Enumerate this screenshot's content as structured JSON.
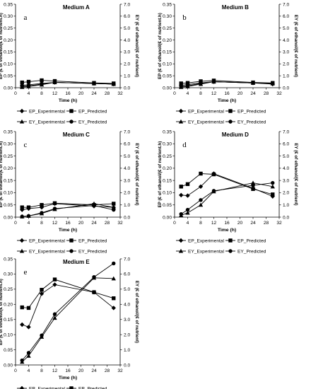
{
  "figure": {
    "legend_labels": [
      "EP_Experimental",
      "EP_Predicted",
      "EY_Experimental",
      "EY_Predicted"
    ]
  },
  "chart_data": [
    {
      "type": "line",
      "panel_letter": "a",
      "title": "Medium A",
      "xlabel": "Time (h)",
      "ylabel_left": "EP (€ of ethanol/(€ of nutrient.h)",
      "ylabel_right": "EY (€ of ethanol/(€ of nutrient)",
      "xlim": [
        0,
        32
      ],
      "x_ticks": [
        0,
        4,
        8,
        12,
        16,
        20,
        24,
        28,
        32
      ],
      "ylim_left": [
        0,
        0.35
      ],
      "y_ticks_left": [
        "0.00",
        "0.05",
        "0.10",
        "0.15",
        "0.20",
        "0.25",
        "0.30",
        "0.35"
      ],
      "ylim_right": [
        0,
        7.0
      ],
      "y_ticks_right": [
        "0.0",
        "1.0",
        "2.0",
        "3.0",
        "4.0",
        "5.0",
        "6.0",
        "7.0"
      ],
      "legend": "bottom",
      "series": [
        {
          "name": "EP_Experimental",
          "axis": "left",
          "marker": "diamond",
          "x": [
            2,
            4,
            8,
            12,
            24,
            30
          ],
          "y": [
            0.01,
            0.012,
            0.018,
            0.022,
            0.018,
            0.015
          ]
        },
        {
          "name": "EP_Predicted",
          "axis": "left",
          "marker": "square",
          "x": [
            2,
            4,
            8,
            12,
            24,
            30
          ],
          "y": [
            0.022,
            0.025,
            0.031,
            0.028,
            0.02,
            0.018
          ]
        },
        {
          "name": "EY_Experimental",
          "axis": "right",
          "marker": "triangle",
          "x": [
            2,
            4,
            8,
            12,
            24,
            30
          ],
          "y": [
            0.05,
            0.1,
            0.25,
            0.45,
            0.35,
            0.3
          ]
        },
        {
          "name": "EY_Predicted",
          "axis": "right",
          "marker": "circle",
          "x": [
            2,
            4,
            8,
            12,
            24,
            30
          ],
          "y": [
            0.1,
            0.15,
            0.3,
            0.45,
            0.35,
            0.3
          ]
        }
      ]
    },
    {
      "type": "line",
      "panel_letter": "b",
      "title": "Medium B",
      "xlabel": "Time (h)",
      "ylabel_left": "EP (€ of ethanol/(€ of nutrient.h)",
      "ylabel_right": "EY (€ of ethanol/(€ of nutrient)",
      "xlim": [
        0,
        32
      ],
      "x_ticks": [
        0,
        4,
        8,
        12,
        16,
        20,
        24,
        28,
        32
      ],
      "ylim_left": [
        0,
        0.35
      ],
      "y_ticks_left": [
        "0.00",
        "0.05",
        "0.10",
        "0.15",
        "0.20",
        "0.25",
        "0.30",
        "0.35"
      ],
      "ylim_right": [
        0,
        7.0
      ],
      "y_ticks_right": [
        "0.0",
        "1.0",
        "2.0",
        "3.0",
        "4.0",
        "5.0",
        "6.0",
        "7.0"
      ],
      "legend": "bottom",
      "series": [
        {
          "name": "EP_Experimental",
          "axis": "left",
          "marker": "diamond",
          "x": [
            2,
            4,
            8,
            12,
            24,
            30
          ],
          "y": [
            0.01,
            0.013,
            0.02,
            0.025,
            0.02,
            0.015
          ]
        },
        {
          "name": "EP_Predicted",
          "axis": "left",
          "marker": "square",
          "x": [
            2,
            4,
            8,
            12,
            24,
            30
          ],
          "y": [
            0.018,
            0.02,
            0.027,
            0.03,
            0.022,
            0.02
          ]
        },
        {
          "name": "EY_Experimental",
          "axis": "right",
          "marker": "triangle",
          "x": [
            2,
            4,
            8,
            12,
            24,
            30
          ],
          "y": [
            0.05,
            0.1,
            0.3,
            0.5,
            0.4,
            0.35
          ]
        },
        {
          "name": "EY_Predicted",
          "axis": "right",
          "marker": "circle",
          "x": [
            2,
            4,
            8,
            12,
            24,
            30
          ],
          "y": [
            0.1,
            0.15,
            0.35,
            0.5,
            0.4,
            0.35
          ]
        }
      ]
    },
    {
      "type": "line",
      "panel_letter": "c",
      "title": "Medium C",
      "xlabel": "Time (h)",
      "ylabel_left": "EP (€ of ethanol/(€ of nutrient.h)",
      "ylabel_right": "EY (€ of ethanol/(€ of nutrient)",
      "xlim": [
        0,
        32
      ],
      "x_ticks": [
        0,
        4,
        8,
        12,
        16,
        20,
        24,
        28,
        32
      ],
      "ylim_left": [
        0,
        0.35
      ],
      "y_ticks_left": [
        "0.00",
        "0.05",
        "0.10",
        "0.15",
        "0.20",
        "0.25",
        "0.30",
        "0.35"
      ],
      "ylim_right": [
        0,
        7.0
      ],
      "y_ticks_right": [
        "0.0",
        "1.0",
        "2.0",
        "3.0",
        "4.0",
        "5.0",
        "6.0",
        "7.0"
      ],
      "legend": "bottom",
      "series": [
        {
          "name": "EP_Experimental",
          "axis": "left",
          "marker": "diamond",
          "x": [
            2,
            4,
            8,
            12,
            24,
            30
          ],
          "y": [
            0.03,
            0.035,
            0.04,
            0.055,
            0.045,
            0.04
          ]
        },
        {
          "name": "EP_Predicted",
          "axis": "left",
          "marker": "square",
          "x": [
            2,
            4,
            8,
            12,
            24,
            30
          ],
          "y": [
            0.04,
            0.04,
            0.05,
            0.057,
            0.05,
            0.055
          ]
        },
        {
          "name": "EY_Experimental",
          "axis": "right",
          "marker": "triangle",
          "x": [
            2,
            4,
            8,
            12,
            24,
            30
          ],
          "y": [
            0.05,
            0.1,
            0.3,
            0.65,
            1.1,
            0.8
          ]
        },
        {
          "name": "EY_Predicted",
          "axis": "right",
          "marker": "circle",
          "x": [
            2,
            4,
            8,
            12,
            24,
            30
          ],
          "y": [
            0.05,
            0.1,
            0.35,
            0.7,
            0.95,
            0.6
          ]
        }
      ]
    },
    {
      "type": "line",
      "panel_letter": "d",
      "title": "Medium D",
      "xlabel": "Time (h)",
      "ylabel_left": "EP (€ of ethanol/(€ of nutrient.h)",
      "ylabel_right": "EY (€ of ethanol/(€ of nutrient)",
      "xlim": [
        0,
        32
      ],
      "x_ticks": [
        0,
        4,
        8,
        12,
        16,
        20,
        24,
        28,
        32
      ],
      "ylim_left": [
        0,
        0.35
      ],
      "y_ticks_left": [
        "0.00",
        "0.05",
        "0.10",
        "0.15",
        "0.20",
        "0.25",
        "0.30",
        "0.35"
      ],
      "ylim_right": [
        0,
        7.0
      ],
      "y_ticks_right": [
        "0.0",
        "1.0",
        "2.0",
        "3.0",
        "4.0",
        "5.0",
        "6.0",
        "7.0"
      ],
      "legend": "bottom",
      "series": [
        {
          "name": "EP_Experimental",
          "axis": "left",
          "marker": "diamond",
          "x": [
            2,
            4,
            8,
            12,
            24,
            30
          ],
          "y": [
            0.09,
            0.088,
            0.125,
            0.178,
            0.118,
            0.085
          ]
        },
        {
          "name": "EP_Predicted",
          "axis": "left",
          "marker": "square",
          "x": [
            2,
            4,
            8,
            12,
            24,
            30
          ],
          "y": [
            0.125,
            0.135,
            0.178,
            0.175,
            0.115,
            0.093
          ]
        },
        {
          "name": "EY_Experimental",
          "axis": "right",
          "marker": "triangle",
          "x": [
            2,
            4,
            8,
            12,
            24,
            30
          ],
          "y": [
            0.15,
            0.35,
            1.0,
            2.1,
            2.8,
            2.5
          ]
        },
        {
          "name": "EY_Predicted",
          "axis": "right",
          "marker": "circle",
          "x": [
            2,
            4,
            8,
            12,
            24,
            30
          ],
          "y": [
            0.25,
            0.6,
            1.4,
            2.15,
            2.6,
            2.8
          ]
        }
      ]
    },
    {
      "type": "line",
      "panel_letter": "e",
      "title": "Medium E",
      "xlabel": "Time (h)",
      "ylabel_left": "EP (€ of ethanol/(€ of nutrient.h)",
      "ylabel_right": "EY (€ of ethanol/(€ of nutrient)",
      "xlim": [
        0,
        32
      ],
      "x_ticks": [
        0,
        4,
        8,
        12,
        16,
        20,
        24,
        28,
        32
      ],
      "ylim_left": [
        0,
        0.35
      ],
      "y_ticks_left": [
        "0.00",
        "0.05",
        "0.10",
        "0.15",
        "0.20",
        "0.25",
        "0.30",
        "0.35"
      ],
      "ylim_right": [
        0,
        7.0
      ],
      "y_ticks_right": [
        "0.0",
        "1.0",
        "2.0",
        "3.0",
        "4.0",
        "5.0",
        "6.0",
        "7.0"
      ],
      "legend": "bottom",
      "series": [
        {
          "name": "EP_Experimental",
          "axis": "left",
          "marker": "diamond",
          "x": [
            2,
            4,
            8,
            12,
            24,
            30
          ],
          "y": [
            0.133,
            0.125,
            0.235,
            0.265,
            0.24,
            0.188
          ]
        },
        {
          "name": "EP_Predicted",
          "axis": "left",
          "marker": "square",
          "x": [
            2,
            4,
            8,
            12,
            24,
            30
          ],
          "y": [
            0.19,
            0.188,
            0.248,
            0.282,
            0.24,
            0.22
          ]
        },
        {
          "name": "EY_Experimental",
          "axis": "right",
          "marker": "triangle",
          "x": [
            2,
            4,
            8,
            12,
            24,
            30
          ],
          "y": [
            0.2,
            0.6,
            1.85,
            3.1,
            5.75,
            5.7
          ]
        },
        {
          "name": "EY_Predicted",
          "axis": "right",
          "marker": "circle",
          "x": [
            2,
            4,
            8,
            12,
            24,
            30
          ],
          "y": [
            0.3,
            0.8,
            1.95,
            3.35,
            5.8,
            6.7
          ]
        }
      ]
    }
  ]
}
